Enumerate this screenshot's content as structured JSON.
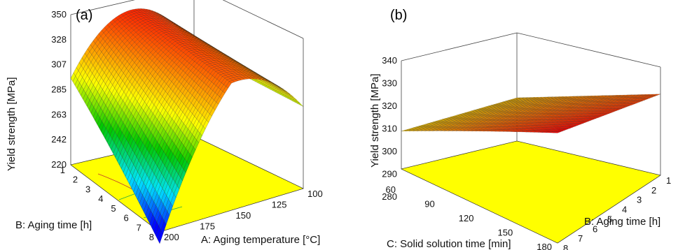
{
  "chart_data": [
    {
      "type": "surface",
      "panel_label": "(a)",
      "zlabel": "Yield strength [MPa]",
      "xlabel": "A: Aging temperature [°C]",
      "ylabel": "B: Aging time [h]",
      "z_ticks": [
        "220",
        "242",
        "263",
        "285",
        "307",
        "328",
        "350"
      ],
      "x_ticks": [
        "100",
        "125",
        "150",
        "175",
        "200"
      ],
      "y_ticks": [
        "1",
        "2",
        "3",
        "4",
        "5",
        "6",
        "7",
        "8"
      ],
      "xlim": [
        100,
        200
      ],
      "ylim": [
        1,
        8
      ],
      "zlim": [
        220,
        350
      ],
      "colormap": [
        "#0000ff",
        "#00e5ff",
        "#00c800",
        "#ffff00",
        "#ff7f00",
        "#ff0000"
      ],
      "floor_color": "#ffff00",
      "surface": {
        "description_points": [
          {
            "temperature": 100,
            "time": 1,
            "yield_strength": 294
          },
          {
            "temperature": 100,
            "time": 8,
            "yield_strength": 282
          },
          {
            "temperature": 150,
            "time": 1,
            "yield_strength": 342
          },
          {
            "temperature": 150,
            "time": 8,
            "yield_strength": 330
          },
          {
            "temperature": 200,
            "time": 1,
            "yield_strength": 295
          },
          {
            "temperature": 200,
            "time": 8,
            "yield_strength": 222
          }
        ]
      }
    },
    {
      "type": "surface",
      "panel_label": "(b)",
      "zlabel": "Yield strength [MPa]",
      "xlabel": "C: Solid solution time [min]",
      "ylabel": "B: Aging time [h]",
      "z_ticks": [
        "280",
        "290",
        "300",
        "310",
        "320",
        "330",
        "340"
      ],
      "x_ticks": [
        "60",
        "90",
        "120",
        "150",
        "180"
      ],
      "y_ticks": [
        "1",
        "2",
        "3",
        "4",
        "5",
        "6",
        "7",
        "8"
      ],
      "xlim": [
        60,
        180
      ],
      "ylim": [
        1,
        8
      ],
      "zlim": [
        280,
        340
      ],
      "colormap": [
        "#0000ff",
        "#00e5ff",
        "#00c800",
        "#ffff00",
        "#ff7f00",
        "#ff0000"
      ],
      "floor_color": "#ffff00",
      "surface": {
        "description_points": [
          {
            "solution_time": 60,
            "time": 1,
            "yield_strength": 304
          },
          {
            "solution_time": 60,
            "time": 8,
            "yield_strength": 301
          },
          {
            "solution_time": 180,
            "time": 1,
            "yield_strength": 322
          },
          {
            "solution_time": 180,
            "time": 8,
            "yield_strength": 341
          }
        ]
      }
    }
  ]
}
